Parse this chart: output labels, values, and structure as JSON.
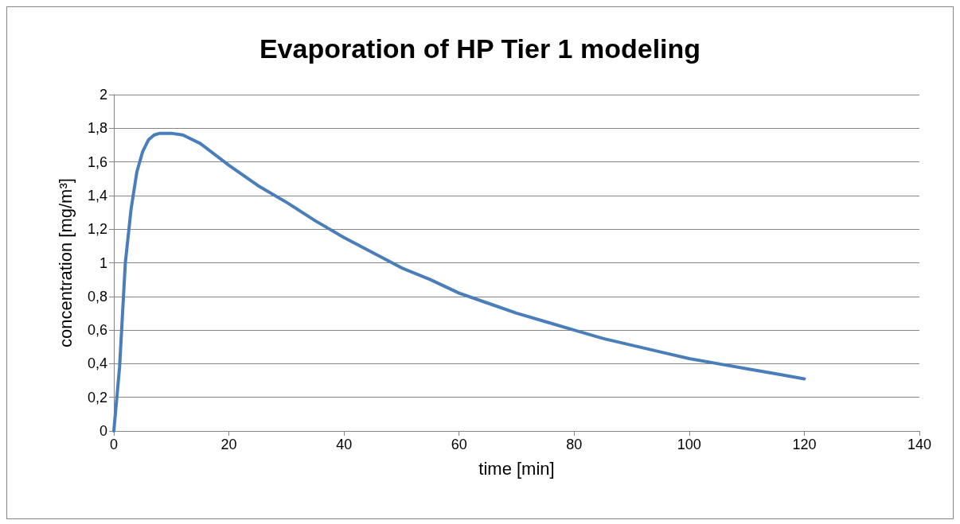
{
  "chart_data": {
    "type": "line",
    "title": "Evaporation of HP Tier 1 modeling",
    "xlabel": "time [min]",
    "ylabel": "concentration [mg/m³]",
    "series": [
      {
        "color": "#4a7ebb",
        "x": [
          0,
          1,
          2,
          3,
          4,
          5,
          6,
          7,
          8,
          9,
          10,
          12,
          15,
          20,
          25,
          30,
          35,
          40,
          45,
          50,
          55,
          60,
          65,
          70,
          75,
          80,
          85,
          90,
          95,
          100,
          105,
          110,
          115,
          120
        ],
        "values": [
          0,
          0.38,
          1.0,
          1.32,
          1.54,
          1.66,
          1.73,
          1.76,
          1.77,
          1.77,
          1.77,
          1.76,
          1.71,
          1.58,
          1.46,
          1.36,
          1.25,
          1.15,
          1.06,
          0.97,
          0.9,
          0.82,
          0.76,
          0.7,
          0.65,
          0.6,
          0.55,
          0.51,
          0.47,
          0.43,
          0.4,
          0.37,
          0.34,
          0.31
        ]
      }
    ],
    "xlim": [
      0,
      140
    ],
    "xticks": [
      0,
      20,
      40,
      60,
      80,
      100,
      120,
      140
    ],
    "ylim": [
      0,
      2
    ],
    "yticks": [
      0,
      {
        "value": 0.2,
        "label": "0,2"
      },
      {
        "value": 0.4,
        "label": "0,4"
      },
      {
        "value": 0.6,
        "label": "0,6"
      },
      {
        "value": 0.8,
        "label": "0,8"
      },
      1,
      {
        "value": 1.2,
        "label": "1,2"
      },
      {
        "value": 1.4,
        "label": "1,4"
      },
      {
        "value": 1.6,
        "label": "1,6"
      },
      {
        "value": 1.8,
        "label": "1,8"
      },
      2
    ],
    "grid": "y",
    "marker": "none",
    "line_style": "solid"
  }
}
